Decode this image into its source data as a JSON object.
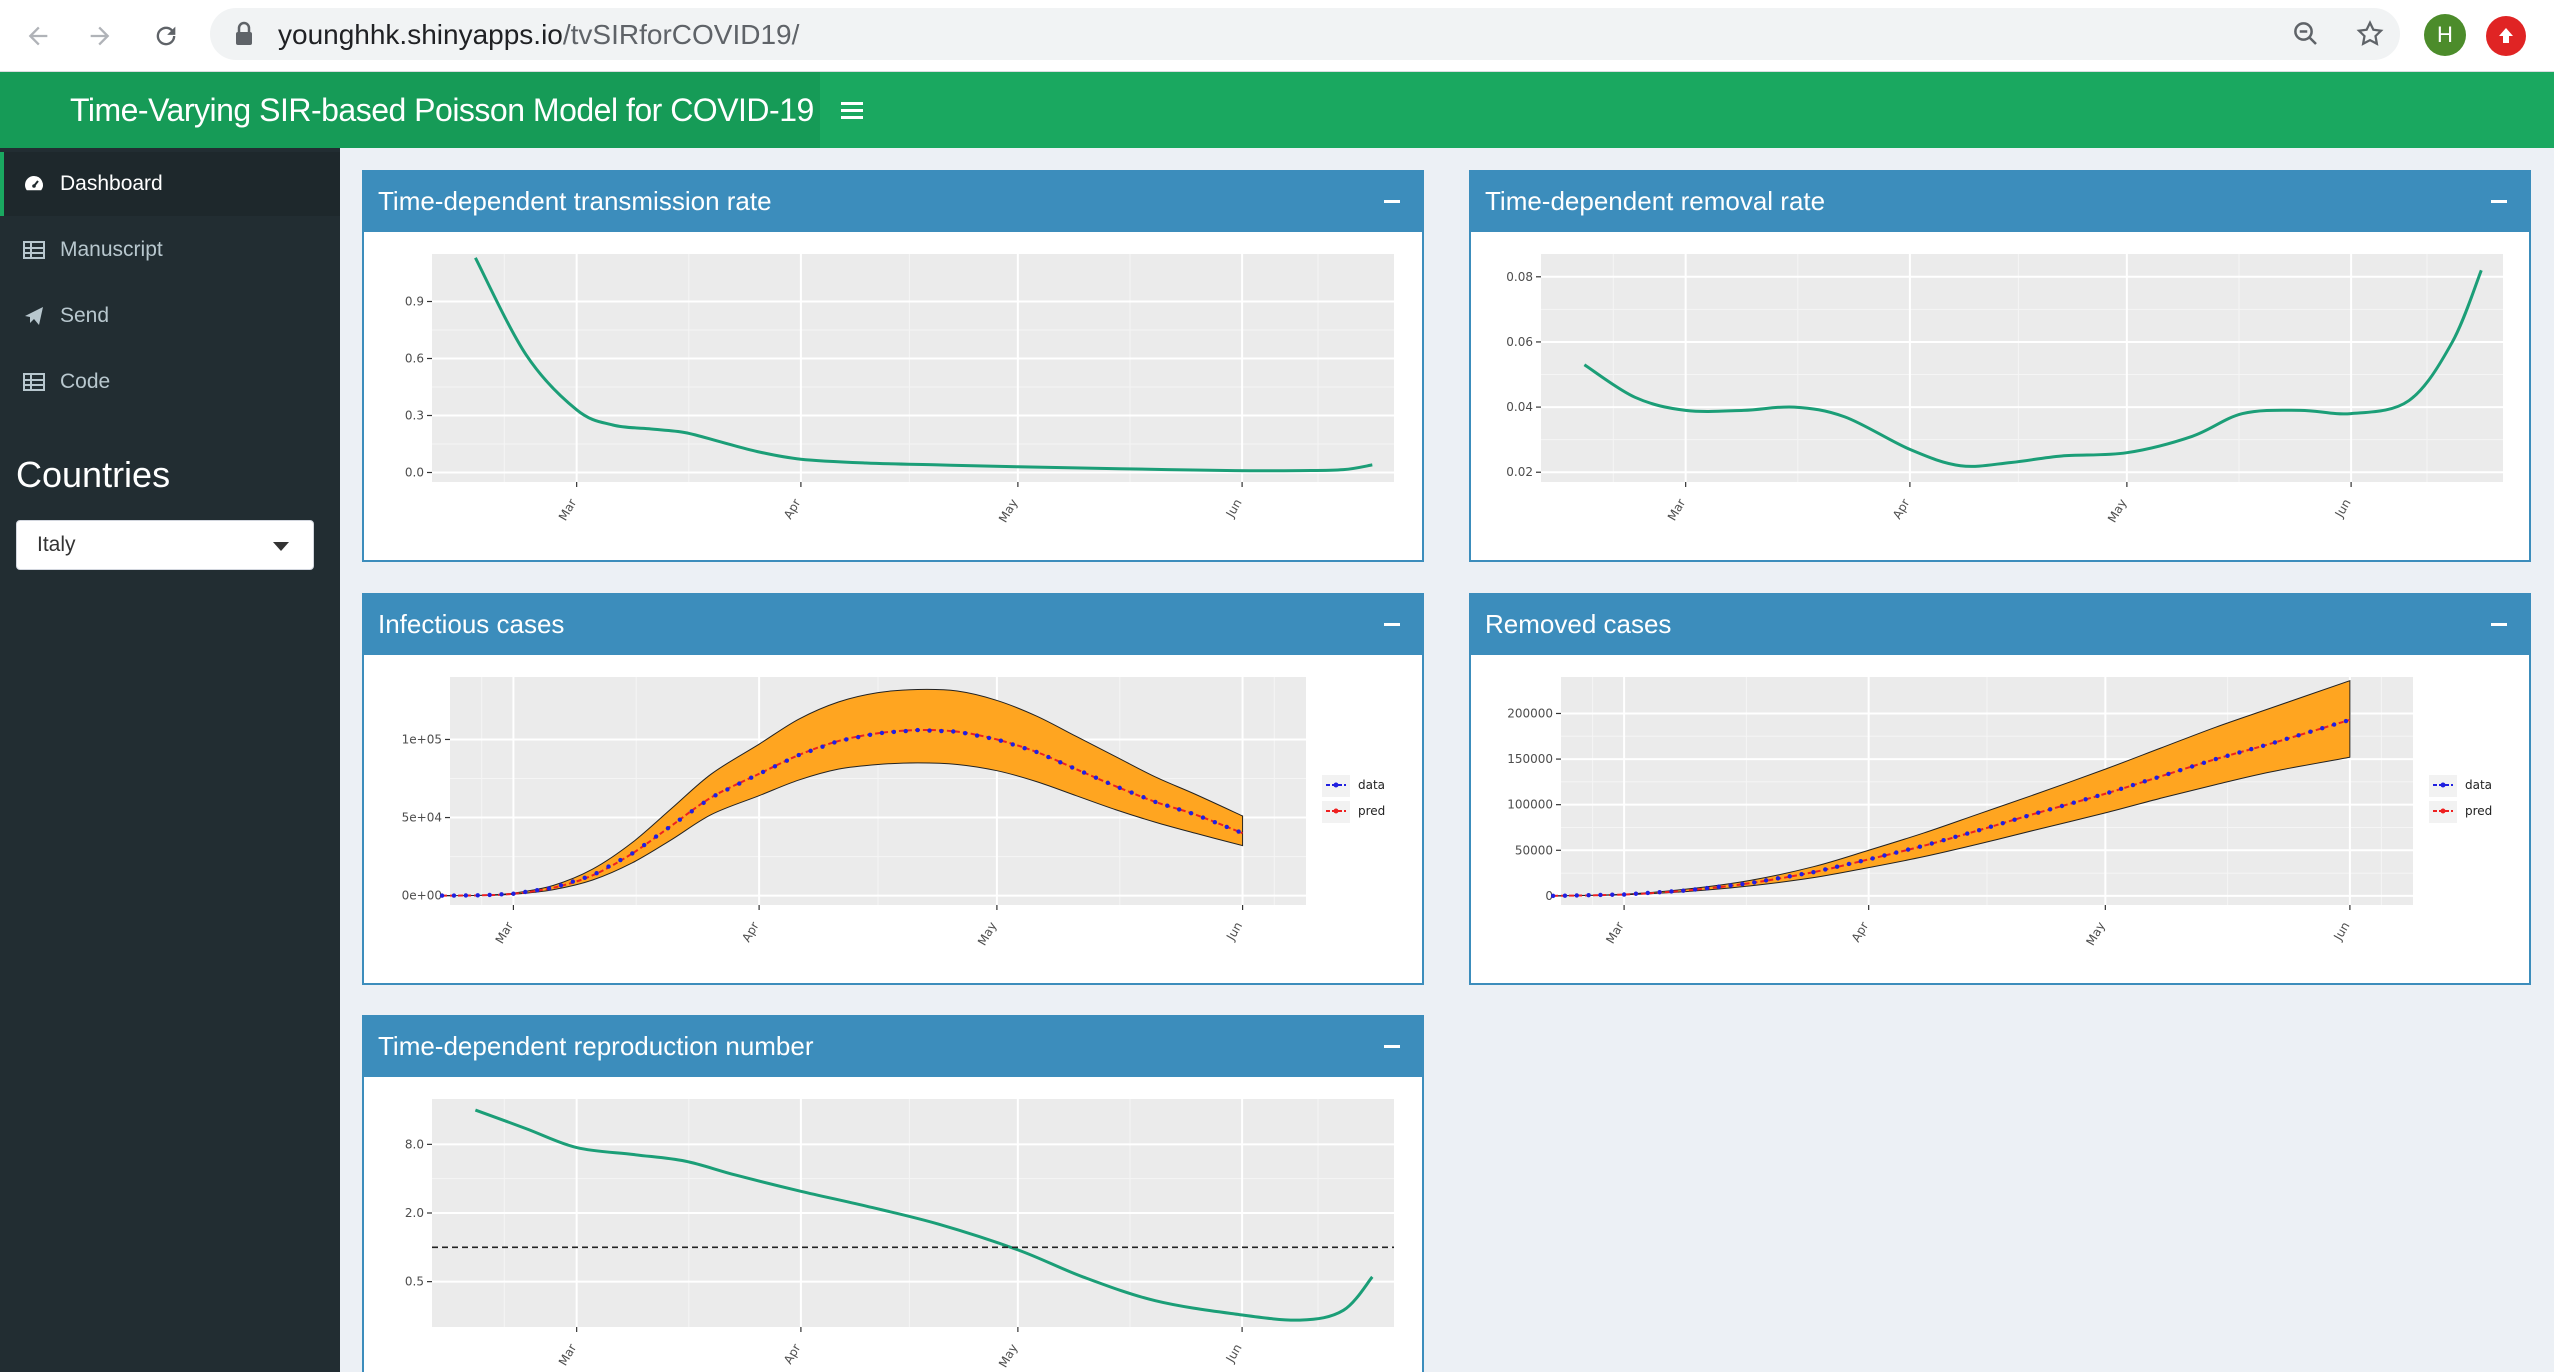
{
  "browser": {
    "url_host": "younghhk.shinyapps.io",
    "url_path": "/tvSIRforCOVID19/",
    "profile_initial": "H"
  },
  "header": {
    "title": "Time-Varying SIR-based Poisson Model for COVID-19"
  },
  "sidebar": {
    "items": [
      {
        "label": "Dashboard",
        "icon": "dashboard-icon"
      },
      {
        "label": "Manuscript",
        "icon": "table-icon"
      },
      {
        "label": "Send",
        "icon": "paper-plane-icon"
      },
      {
        "label": "Code",
        "icon": "table-icon"
      }
    ],
    "countries_title": "Countries",
    "country_selected": "Italy"
  },
  "boxes": {
    "transmission": {
      "title": "Time-dependent transmission rate"
    },
    "removal": {
      "title": "Time-dependent removal rate"
    },
    "infectious": {
      "title": "Infectious cases"
    },
    "removed": {
      "title": "Removed cases"
    },
    "reproduction": {
      "title": "Time-dependent reproduction number"
    }
  },
  "colors": {
    "header_green": "#1aa860",
    "box_blue": "#3c8dbc",
    "line_green": "#1b9e77",
    "band_orange": "#ffa520"
  },
  "chart_data": [
    {
      "id": "transmission",
      "type": "line",
      "x_ticks": [
        "Mar",
        "Apr",
        "May",
        "Jun"
      ],
      "y_ticks": [
        "0.0",
        "0.3",
        "0.6",
        "0.9"
      ],
      "ylim": [
        -0.05,
        1.15
      ],
      "x": [
        -14,
        -7,
        0,
        5,
        10,
        15,
        20,
        25,
        31,
        40,
        50,
        61,
        75,
        91,
        100,
        106,
        110
      ],
      "y": [
        1.13,
        0.62,
        0.33,
        0.25,
        0.23,
        0.21,
        0.16,
        0.11,
        0.07,
        0.05,
        0.04,
        0.03,
        0.02,
        0.01,
        0.01,
        0.015,
        0.04
      ],
      "xlim": [
        -20,
        113
      ],
      "grid": true
    },
    {
      "id": "removal",
      "type": "line",
      "x_ticks": [
        "Mar",
        "Apr",
        "May",
        "Jun"
      ],
      "y_ticks": [
        "0.02",
        "0.04",
        "0.06",
        "0.08"
      ],
      "ylim": [
        0.017,
        0.087
      ],
      "x": [
        -14,
        -7,
        0,
        8,
        15,
        22,
        31,
        38,
        45,
        52,
        61,
        70,
        77,
        85,
        92,
        100,
        106,
        110
      ],
      "y": [
        0.053,
        0.043,
        0.039,
        0.039,
        0.04,
        0.037,
        0.027,
        0.022,
        0.023,
        0.025,
        0.026,
        0.031,
        0.038,
        0.039,
        0.038,
        0.042,
        0.06,
        0.082
      ],
      "xlim": [
        -20,
        113
      ],
      "grid": true
    },
    {
      "id": "infectious",
      "type": "area",
      "x_ticks": [
        "Mar",
        "Apr",
        "May",
        "Jun"
      ],
      "y_ticks": [
        "0e+00",
        "5e+04",
        "1e+05"
      ],
      "ylim": [
        -6000,
        140000
      ],
      "xlim": [
        -8,
        100
      ],
      "x": [
        -9,
        -4,
        0,
        5,
        10,
        15,
        20,
        25,
        31,
        36,
        41,
        46,
        51,
        56,
        61,
        66,
        71,
        76,
        81,
        86,
        92
      ],
      "pred": [
        0,
        200,
        1200,
        5000,
        13000,
        27000,
        45000,
        63000,
        78000,
        90000,
        99000,
        104000,
        106000,
        105000,
        100000,
        92000,
        81000,
        70000,
        60000,
        52000,
        40000
      ],
      "lower": [
        0,
        150,
        900,
        3800,
        10000,
        21000,
        36000,
        52000,
        64000,
        74000,
        81000,
        84000,
        85000,
        84000,
        80000,
        73000,
        64000,
        55000,
        47000,
        40000,
        32000
      ],
      "upper": [
        0,
        260,
        1600,
        6500,
        17000,
        34000,
        56000,
        78000,
        97000,
        113000,
        124000,
        130000,
        132000,
        131000,
        125000,
        115000,
        102000,
        89000,
        76000,
        65000,
        51000
      ],
      "series": [
        {
          "name": "data",
          "color": "#2020e0"
        },
        {
          "name": "pred",
          "color": "#ee2020"
        }
      ],
      "grid": true
    },
    {
      "id": "removed",
      "type": "area",
      "x_ticks": [
        "Mar",
        "Apr",
        "May",
        "Jun"
      ],
      "y_ticks": [
        "0",
        "50000",
        "100000",
        "150000",
        "200000"
      ],
      "ylim": [
        -10000,
        240000
      ],
      "xlim": [
        -8,
        100
      ],
      "x": [
        -9,
        0,
        8,
        16,
        24,
        31,
        38,
        45,
        52,
        61,
        68,
        75,
        82,
        92
      ],
      "pred": [
        0,
        1500,
        6000,
        14000,
        26000,
        40000,
        55000,
        72000,
        90000,
        112000,
        131000,
        150000,
        167000,
        193000
      ],
      "lower": [
        0,
        1200,
        4800,
        11000,
        20000,
        31000,
        43000,
        57000,
        72000,
        91000,
        107000,
        122000,
        136000,
        152000
      ],
      "upper": [
        0,
        1800,
        7500,
        17000,
        32000,
        50000,
        69000,
        90000,
        111000,
        139000,
        162000,
        185000,
        206000,
        236000
      ],
      "series": [
        {
          "name": "data",
          "color": "#2020e0"
        },
        {
          "name": "pred",
          "color": "#ee2020"
        }
      ],
      "grid": true
    },
    {
      "id": "reproduction",
      "type": "line",
      "x_ticks": [
        "Mar",
        "Apr",
        "May",
        "Jun"
      ],
      "y_ticks": [
        "0.5",
        "2.0",
        "8.0"
      ],
      "log_scale": true,
      "x": [
        -14,
        -7,
        0,
        8,
        15,
        22,
        31,
        40,
        50,
        61,
        70,
        80,
        91,
        100,
        106,
        110
      ],
      "y": [
        16.0,
        11.0,
        7.5,
        6.5,
        5.7,
        4.3,
        3.1,
        2.3,
        1.6,
        0.95,
        0.55,
        0.34,
        0.26,
        0.23,
        0.28,
        0.55
      ],
      "xlim": [
        -20,
        113
      ],
      "reference_line": 1.0,
      "grid": true
    }
  ]
}
